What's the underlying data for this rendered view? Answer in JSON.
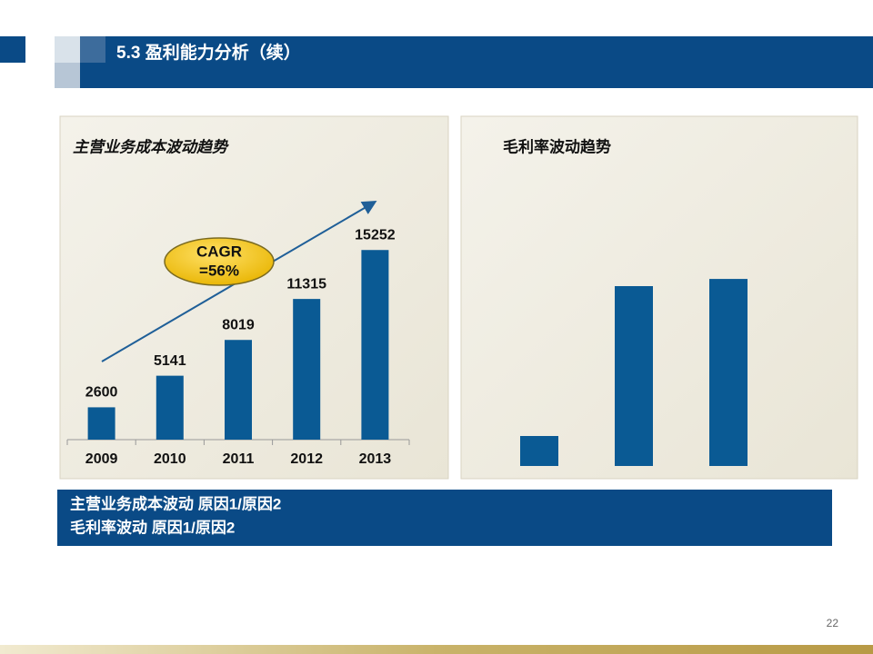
{
  "header": {
    "title": "5.3 盈利能力分析（续）"
  },
  "chart_data": [
    {
      "type": "bar",
      "title": "主营业务成本波动趋势",
      "categories": [
        "2009",
        "2010",
        "2011",
        "2012",
        "2013"
      ],
      "values": [
        2600,
        5141,
        8019,
        11315,
        15252
      ],
      "color": "#0a5a94",
      "ylim": [
        0,
        16000
      ],
      "annotation": [
        "CAGR",
        "=56%"
      ]
    },
    {
      "type": "bar",
      "title": "毛利率波动趋势",
      "categories": [
        null,
        null,
        null
      ],
      "values": [
        5,
        30,
        31.2
      ],
      "color": "#0a5a94",
      "ylim": [
        0,
        35
      ]
    }
  ],
  "notes": [
    "主营业务成本波动 原因1/原因2",
    "毛利率波动 原因1/原因2"
  ],
  "page_number": "22"
}
